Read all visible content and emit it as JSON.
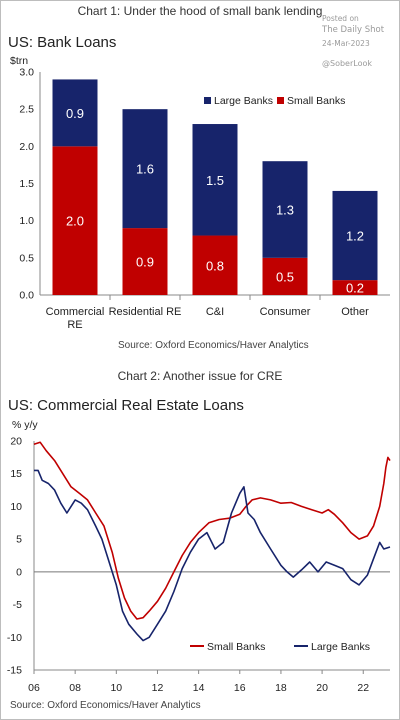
{
  "watermark": {
    "line1": "Posted on",
    "line2": "The Daily Shot",
    "line3": "24-Mar-2023",
    "line4": "@SoberLook"
  },
  "chart_data": [
    {
      "type": "bar",
      "heading": "Chart 1: Under the hood of small bank lending",
      "title": "US: Bank Loans",
      "ylabel": "$trn",
      "categories": [
        "Commercial\nRE",
        "Residential RE",
        "C&I",
        "Consumer",
        "Other"
      ],
      "stacked": true,
      "series": [
        {
          "name": "Small Banks",
          "color": "#c00000",
          "values": [
            2.0,
            0.9,
            0.8,
            0.5,
            0.2
          ],
          "labels": [
            "2.0",
            "0.9",
            "0.8",
            "0.5",
            "0.2"
          ]
        },
        {
          "name": "Large Banks",
          "color": "#17246b",
          "values": [
            0.9,
            1.6,
            1.5,
            1.3,
            1.2
          ],
          "labels": [
            "0.9",
            "1.6",
            "1.5",
            "1.3",
            "1.2"
          ]
        }
      ],
      "ylim": [
        0,
        3.0
      ],
      "yticks": [
        "0.0",
        "0.5",
        "1.0",
        "1.5",
        "2.0",
        "2.5",
        "3.0"
      ],
      "legend": [
        "Large Banks",
        "Small Banks"
      ],
      "legend_position": "top-right",
      "source": "Source: Oxford Economics/Haver Analytics"
    },
    {
      "type": "line",
      "heading": "Chart 2: Another issue for CRE",
      "title": "US: Commercial Real Estate Loans",
      "ylabel": "% y/y",
      "xlim": [
        2006,
        2023.3
      ],
      "ylim": [
        -15,
        20
      ],
      "xticks": [
        "06",
        "08",
        "10",
        "12",
        "14",
        "16",
        "18",
        "20",
        "22"
      ],
      "yticks": [
        "-15",
        "-10",
        "-5",
        "0",
        "5",
        "10",
        "15",
        "20"
      ],
      "series": [
        {
          "name": "Small Banks",
          "color": "#c00000",
          "points": [
            [
              2006.0,
              19.5
            ],
            [
              2006.3,
              19.8
            ],
            [
              2006.6,
              18.5
            ],
            [
              2007.0,
              17
            ],
            [
              2007.4,
              15
            ],
            [
              2007.8,
              13
            ],
            [
              2008.2,
              12
            ],
            [
              2008.6,
              11
            ],
            [
              2009.0,
              9
            ],
            [
              2009.4,
              7
            ],
            [
              2009.8,
              3
            ],
            [
              2010.1,
              -1
            ],
            [
              2010.4,
              -4
            ],
            [
              2010.7,
              -6
            ],
            [
              2011.0,
              -7.2
            ],
            [
              2011.3,
              -7
            ],
            [
              2011.6,
              -6
            ],
            [
              2012.0,
              -4.5
            ],
            [
              2012.4,
              -2.5
            ],
            [
              2012.8,
              0
            ],
            [
              2013.2,
              2.5
            ],
            [
              2013.6,
              4.5
            ],
            [
              2014.0,
              6
            ],
            [
              2014.5,
              7.5
            ],
            [
              2015.0,
              8
            ],
            [
              2015.5,
              8.2
            ],
            [
              2016.0,
              8.8
            ],
            [
              2016.3,
              10
            ],
            [
              2016.6,
              11
            ],
            [
              2017.0,
              11.3
            ],
            [
              2017.5,
              11
            ],
            [
              2018.0,
              10.5
            ],
            [
              2018.5,
              10.6
            ],
            [
              2019.0,
              10
            ],
            [
              2019.5,
              9.5
            ],
            [
              2020.0,
              9
            ],
            [
              2020.3,
              9.5
            ],
            [
              2020.6,
              8.8
            ],
            [
              2021.0,
              7.5
            ],
            [
              2021.4,
              6
            ],
            [
              2021.8,
              5
            ],
            [
              2022.2,
              5.5
            ],
            [
              2022.5,
              7
            ],
            [
              2022.8,
              10
            ],
            [
              2023.0,
              13.5
            ],
            [
              2023.1,
              16
            ],
            [
              2023.2,
              17.5
            ],
            [
              2023.3,
              17
            ]
          ]
        },
        {
          "name": "Large Banks",
          "color": "#17246b",
          "points": [
            [
              2006.0,
              15.5
            ],
            [
              2006.2,
              15.5
            ],
            [
              2006.4,
              14
            ],
            [
              2006.7,
              13.5
            ],
            [
              2007.0,
              12.5
            ],
            [
              2007.3,
              10.5
            ],
            [
              2007.6,
              9
            ],
            [
              2008.0,
              11
            ],
            [
              2008.3,
              10.5
            ],
            [
              2008.6,
              9.5
            ],
            [
              2009.0,
              7
            ],
            [
              2009.3,
              5
            ],
            [
              2009.6,
              2
            ],
            [
              2010.0,
              -2
            ],
            [
              2010.3,
              -6
            ],
            [
              2010.6,
              -8
            ],
            [
              2011.0,
              -9.5
            ],
            [
              2011.3,
              -10.5
            ],
            [
              2011.6,
              -10
            ],
            [
              2012.0,
              -8
            ],
            [
              2012.4,
              -6
            ],
            [
              2012.8,
              -3
            ],
            [
              2013.2,
              0.5
            ],
            [
              2013.6,
              3
            ],
            [
              2014.0,
              5
            ],
            [
              2014.4,
              6
            ],
            [
              2014.8,
              3.5
            ],
            [
              2015.2,
              4.5
            ],
            [
              2015.6,
              9
            ],
            [
              2016.0,
              12
            ],
            [
              2016.2,
              13
            ],
            [
              2016.4,
              9
            ],
            [
              2016.7,
              8
            ],
            [
              2017.0,
              6
            ],
            [
              2017.5,
              3.5
            ],
            [
              2018.0,
              1
            ],
            [
              2018.3,
              0
            ],
            [
              2018.6,
              -0.8
            ],
            [
              2019.0,
              0.3
            ],
            [
              2019.4,
              1.5
            ],
            [
              2019.8,
              0
            ],
            [
              2020.2,
              1.5
            ],
            [
              2020.6,
              1
            ],
            [
              2021.0,
              0.5
            ],
            [
              2021.4,
              -1.2
            ],
            [
              2021.8,
              -2
            ],
            [
              2022.2,
              -0.5
            ],
            [
              2022.5,
              2
            ],
            [
              2022.8,
              4.5
            ],
            [
              2023.0,
              3.5
            ],
            [
              2023.3,
              3.8
            ]
          ]
        }
      ],
      "zero_line": true,
      "legend": [
        "Small Banks",
        "Large Banks"
      ],
      "legend_position": "bottom-right",
      "source": "Source: Oxford Economics/Haver Analytics"
    }
  ]
}
